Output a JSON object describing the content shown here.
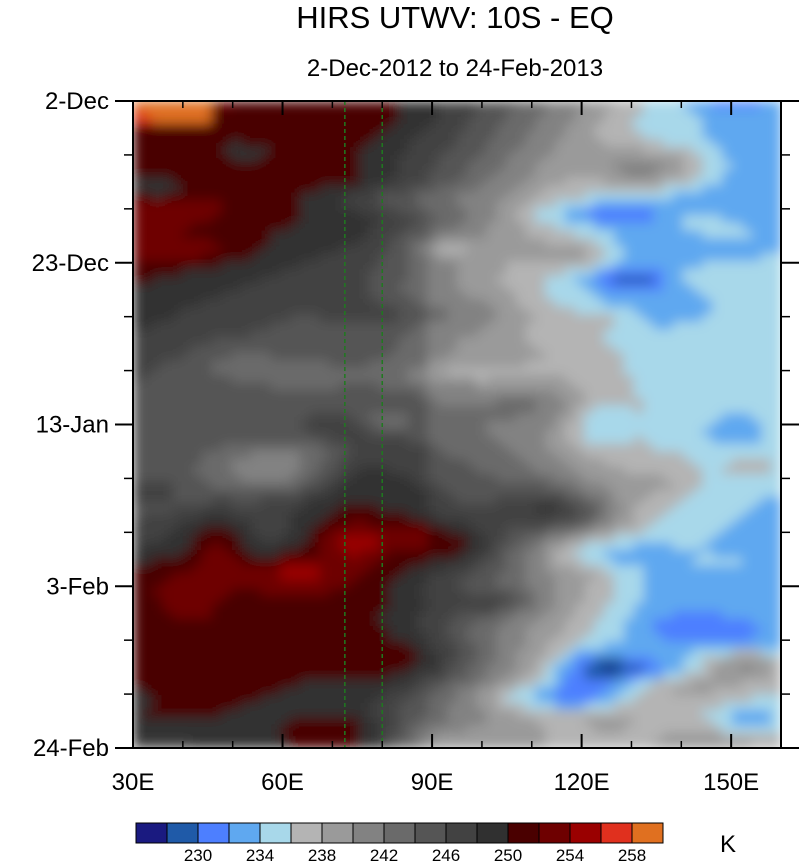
{
  "chart_data": {
    "type": "heatmap",
    "title": "HIRS UTWV: 10S - EQ",
    "subtitle": "2-Dec-2012 to 24-Feb-2013",
    "x_ticks": [
      "30E",
      "60E",
      "90E",
      "120E",
      "150E"
    ],
    "x_tick_values": [
      30,
      60,
      90,
      120,
      150
    ],
    "xlim": [
      30,
      160
    ],
    "y_ticks": [
      "2-Dec",
      "23-Dec",
      "13-Jan",
      "3-Feb",
      "24-Feb"
    ],
    "y_tick_days": [
      0,
      21,
      42,
      63,
      84
    ],
    "ylim_days": [
      0,
      84
    ],
    "reference_lines_lon": [
      72.5,
      80
    ],
    "colorbar": {
      "unit": "K",
      "levels": [
        228,
        230,
        232,
        234,
        236,
        238,
        240,
        242,
        244,
        246,
        248,
        250,
        252,
        254,
        256,
        258,
        260
      ],
      "labeled_levels": [
        "230",
        "234",
        "238",
        "242",
        "246",
        "250",
        "254",
        "258"
      ],
      "colors": [
        "#1a1a80",
        "#1f5aa8",
        "#4d7fff",
        "#5fa8f0",
        "#a8d8ea",
        "#b4b4b4",
        "#9a9a9a",
        "#828282",
        "#6a6a6a",
        "#555555",
        "#424242",
        "#303030",
        "#4a0000",
        "#6e0000",
        "#9a0000",
        "#e0301e",
        "#e07020"
      ]
    }
  }
}
